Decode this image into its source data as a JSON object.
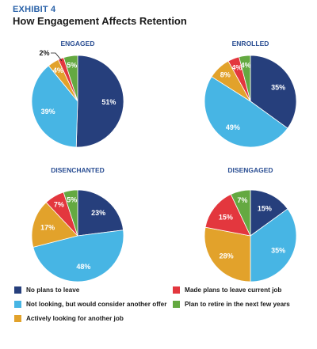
{
  "header": {
    "exhibit": "EXHIBIT 4",
    "title": "How Engagement Affects Retention"
  },
  "colors": {
    "no_plans": "#263f7c",
    "not_looking": "#47b5e4",
    "actively_looking": "#e2a22b",
    "made_plans": "#e3373e",
    "retire": "#64a941",
    "chart_title": "#2a4e93"
  },
  "legend": [
    {
      "label": "No plans to leave",
      "color_key": "no_plans"
    },
    {
      "label": "Made plans to leave current job",
      "color_key": "made_plans"
    },
    {
      "label": "Not looking, but would consider another offer",
      "color_key": "not_looking"
    },
    {
      "label": "Plan to retire in the next few years",
      "color_key": "retire"
    },
    {
      "label": "Actively looking for another job",
      "color_key": "actively_looking"
    }
  ],
  "chart_data": [
    {
      "type": "pie",
      "title": "ENGAGED",
      "slices": [
        {
          "label": "No plans to leave",
          "value": 51,
          "display": "51%"
        },
        {
          "label": "Not looking, but would consider another offer",
          "value": 39,
          "display": "39%"
        },
        {
          "label": "Actively looking for another job",
          "value": 4,
          "display": "4%"
        },
        {
          "label": "Made plans to leave current job",
          "value": 2,
          "display": "2%"
        },
        {
          "label": "Plan to retire in the next few years",
          "value": 5,
          "display": "5%"
        }
      ]
    },
    {
      "type": "pie",
      "title": "ENROLLED",
      "slices": [
        {
          "label": "No plans to leave",
          "value": 35,
          "display": "35%"
        },
        {
          "label": "Not looking, but would consider another offer",
          "value": 49,
          "display": "49%"
        },
        {
          "label": "Actively looking for another job",
          "value": 8,
          "display": "8%"
        },
        {
          "label": "Made plans to leave current job",
          "value": 4,
          "display": "4%"
        },
        {
          "label": "Plan to retire in the next few years",
          "value": 4,
          "display": "4%"
        }
      ]
    },
    {
      "type": "pie",
      "title": "DISENCHANTED",
      "slices": [
        {
          "label": "No plans to leave",
          "value": 23,
          "display": "23%"
        },
        {
          "label": "Not looking, but would consider another offer",
          "value": 48,
          "display": "48%"
        },
        {
          "label": "Actively looking for another job",
          "value": 17,
          "display": "17%"
        },
        {
          "label": "Made plans to leave current job",
          "value": 7,
          "display": "7%"
        },
        {
          "label": "Plan to retire in the next few years",
          "value": 5,
          "display": "5%"
        }
      ]
    },
    {
      "type": "pie",
      "title": "DISENGAGED",
      "slices": [
        {
          "label": "No plans to leave",
          "value": 15,
          "display": "15%"
        },
        {
          "label": "Not looking, but would consider another offer",
          "value": 35,
          "display": "35%"
        },
        {
          "label": "Actively looking for another job",
          "value": 28,
          "display": "28%"
        },
        {
          "label": "Made plans to leave current job",
          "value": 15,
          "display": "15%"
        },
        {
          "label": "Plan to retire in the next few years",
          "value": 7,
          "display": "7%"
        }
      ]
    }
  ]
}
